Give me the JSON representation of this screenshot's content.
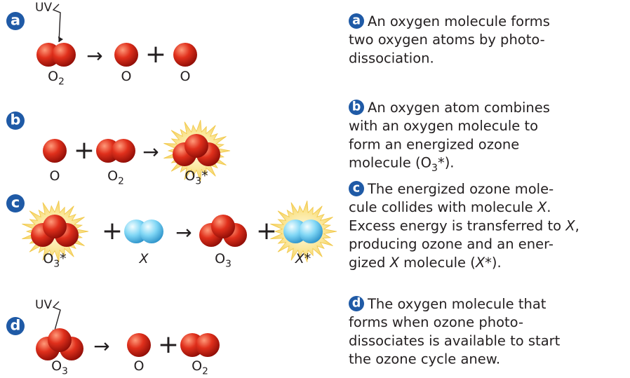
{
  "steps": [
    {
      "badge": "a",
      "uv": "UV",
      "equation": [
        {
          "kind": "o2",
          "label": [
            {
              "t": "O"
            },
            {
              "t": "2",
              "sub": true
            }
          ]
        },
        {
          "op": "→"
        },
        {
          "kind": "o",
          "label": [
            {
              "t": "O"
            }
          ]
        },
        {
          "op": "+"
        },
        {
          "kind": "o",
          "label": [
            {
              "t": "O"
            }
          ]
        }
      ],
      "caption": [
        [
          {
            "t": "An oxygen molecule forms"
          }
        ],
        [
          {
            "t": "two oxygen atoms by photo-"
          }
        ],
        [
          {
            "t": "dissociation."
          }
        ]
      ]
    },
    {
      "badge": "b",
      "equation": [
        {
          "kind": "o",
          "label": [
            {
              "t": "O"
            }
          ]
        },
        {
          "op": "+"
        },
        {
          "kind": "o2",
          "label": [
            {
              "t": "O"
            },
            {
              "t": "2",
              "sub": true
            }
          ]
        },
        {
          "op": "→"
        },
        {
          "kind": "o3",
          "energized": true,
          "label": [
            {
              "t": "O"
            },
            {
              "t": "3",
              "sub": true
            },
            {
              "t": "*"
            }
          ]
        }
      ],
      "caption": [
        [
          {
            "t": "An oxygen atom combines"
          }
        ],
        [
          {
            "t": "with an oxygen molecule to"
          }
        ],
        [
          {
            "t": "form an energized ozone"
          }
        ],
        [
          {
            "t": "molecule (O"
          },
          {
            "t": "3",
            "sub": true
          },
          {
            "t": "*)."
          }
        ]
      ]
    },
    {
      "badge": "c",
      "equation": [
        {
          "kind": "o3",
          "energized": true,
          "label": [
            {
              "t": "O"
            },
            {
              "t": "3",
              "sub": true
            },
            {
              "t": "*"
            }
          ]
        },
        {
          "op": "+"
        },
        {
          "kind": "x2",
          "label": [
            {
              "t": "X",
              "i": true
            }
          ]
        },
        {
          "op": "→"
        },
        {
          "kind": "o3",
          "label": [
            {
              "t": "O"
            },
            {
              "t": "3",
              "sub": true
            }
          ]
        },
        {
          "op": "+"
        },
        {
          "kind": "x2",
          "energized": true,
          "label": [
            {
              "t": "X",
              "i": true
            },
            {
              "t": "*"
            }
          ]
        }
      ],
      "caption": [
        [
          {
            "t": "The energized ozone mole-"
          }
        ],
        [
          {
            "t": "cule collides with molecule "
          },
          {
            "t": "X",
            "i": true
          },
          {
            "t": "."
          }
        ],
        [
          {
            "t": "Excess energy is transferred to "
          },
          {
            "t": "X",
            "i": true
          },
          {
            "t": ","
          }
        ],
        [
          {
            "t": "producing ozone and an ener-"
          }
        ],
        [
          {
            "t": "gized "
          },
          {
            "t": "X",
            "i": true
          },
          {
            "t": " molecule ("
          },
          {
            "t": "X",
            "i": true
          },
          {
            "t": "*)."
          }
        ]
      ]
    },
    {
      "badge": "d",
      "uv": "UV",
      "equation": [
        {
          "kind": "o3",
          "label": [
            {
              "t": "O"
            },
            {
              "t": "3",
              "sub": true
            }
          ]
        },
        {
          "op": "→"
        },
        {
          "kind": "o",
          "label": [
            {
              "t": "O"
            }
          ]
        },
        {
          "op": "+"
        },
        {
          "kind": "o2",
          "label": [
            {
              "t": "O"
            },
            {
              "t": "2",
              "sub": true
            }
          ]
        }
      ],
      "caption": [
        [
          {
            "t": "The oxygen molecule that"
          }
        ],
        [
          {
            "t": "forms when ozone photo-"
          }
        ],
        [
          {
            "t": "dissociates is available to start"
          }
        ],
        [
          {
            "t": "the ozone cycle anew."
          }
        ]
      ]
    }
  ]
}
